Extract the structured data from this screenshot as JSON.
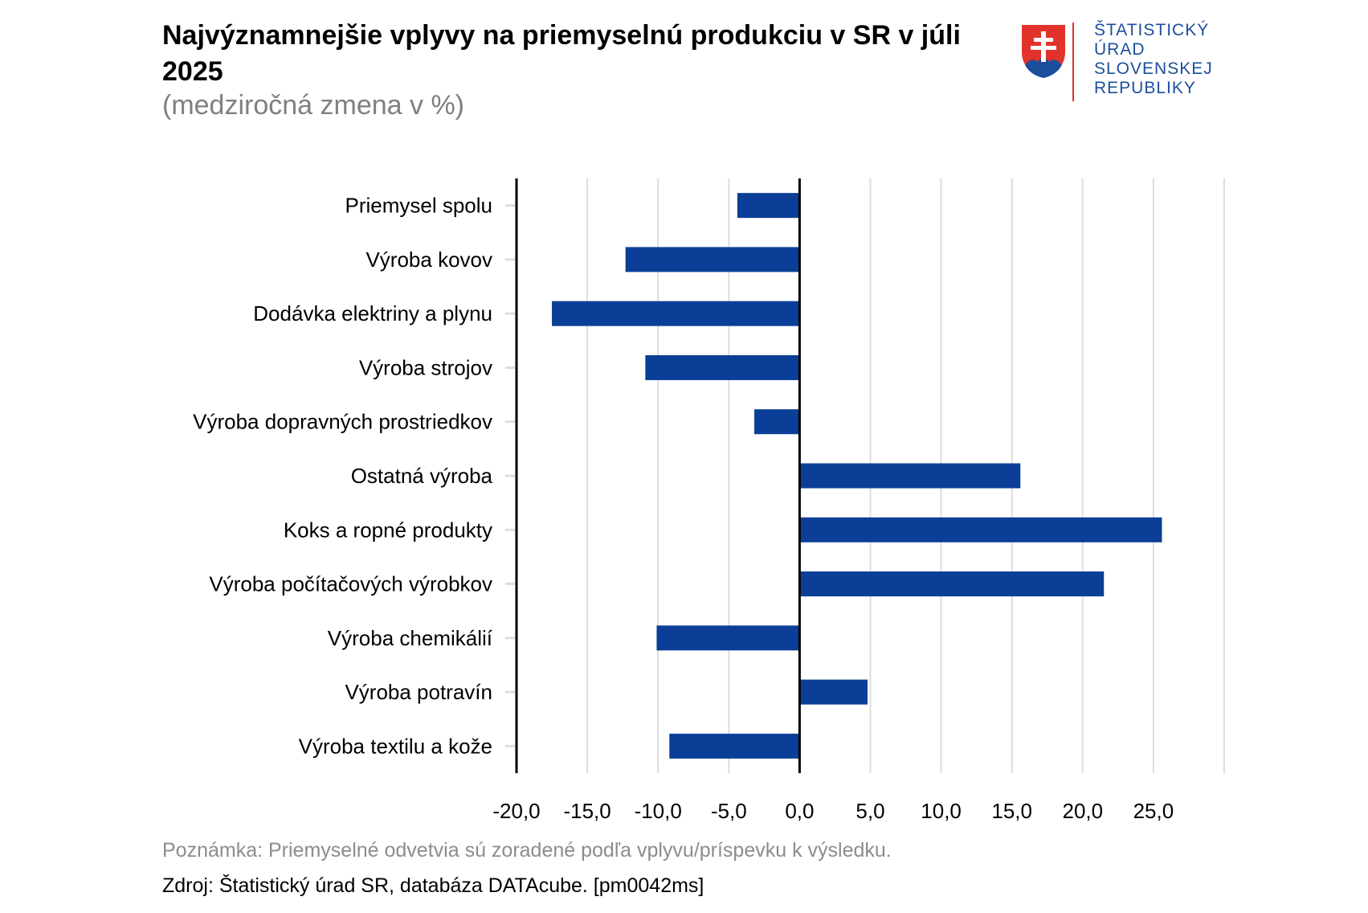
{
  "title": "Najvýznamnejšie vplyvy na priemyselnú produkciu v SR v júli 2025",
  "subtitle": "(medziročná zmena v %)",
  "logo": {
    "lines": [
      "ŠTATISTICKÝ",
      "ÚRAD",
      "SLOVENSKEJ",
      "REPUBLIKY"
    ],
    "icon": "slovak-coat-of-arms-icon"
  },
  "note": "Poznámka: Priemyselné odvetvia sú zoradené podľa vplyvu/príspevku k výsledku.",
  "source": "Zdroj: Štatistický úrad SR, databáza DATAcube. [pm0042ms]",
  "colors": {
    "bar": "#0b3f97",
    "grid": "#dddddd",
    "axis": "#000000",
    "logo_text": "#1b4f9c",
    "logo_line": "#e1322b"
  },
  "chart_data": {
    "type": "bar",
    "orientation": "horizontal",
    "categories": [
      "Priemysel spolu",
      "Výroba kovov",
      "Dodávka elektriny a plynu",
      "Výroba strojov",
      "Výroba dopravných prostriedkov",
      "Ostatná výroba",
      "Koks a ropné produkty",
      "Výroba počítačových výrobkov",
      "Výroba chemikálií",
      "Výroba potravín",
      "Výroba textilu a kože"
    ],
    "values": [
      -4.4,
      -12.3,
      -17.5,
      -10.9,
      -3.2,
      15.6,
      25.6,
      21.5,
      -10.1,
      4.8,
      -9.2
    ],
    "xlim": [
      -20,
      30
    ],
    "xticks": [
      -20,
      -15,
      -10,
      -5,
      0,
      5,
      10,
      15,
      20,
      25
    ],
    "xtick_labels": [
      "-20,0",
      "-15,0",
      "-10,0",
      "-5,0",
      "0,0",
      "5,0",
      "10,0",
      "15,0",
      "20,0",
      "25,0"
    ],
    "grid": true
  }
}
